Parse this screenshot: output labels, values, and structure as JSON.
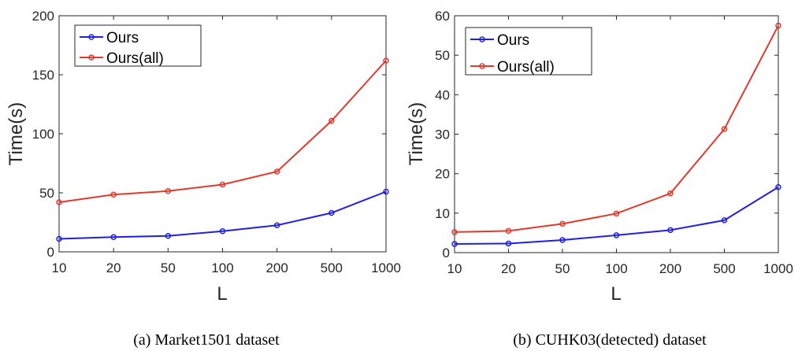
{
  "chart_data": [
    {
      "type": "line",
      "categories": [
        "10",
        "20",
        "50",
        "100",
        "200",
        "500",
        "1000"
      ],
      "xlabel": "L",
      "ylabel": "Time(s)",
      "ylim": [
        0,
        200
      ],
      "yticks": [
        0,
        50,
        100,
        150,
        200
      ],
      "grid": false,
      "legend_position": "top-left",
      "series": [
        {
          "name": "Ours",
          "color": "#2020e0",
          "values": [
            11,
            12.5,
            13.5,
            17.5,
            22.5,
            33,
            51
          ]
        },
        {
          "name": "Ours(all)",
          "color": "#e03a2e",
          "values": [
            42,
            48.5,
            51.5,
            57,
            68,
            111,
            162
          ]
        }
      ],
      "caption": "(a) Market1501 dataset"
    },
    {
      "type": "line",
      "categories": [
        "10",
        "20",
        "50",
        "100",
        "200",
        "500",
        "1000"
      ],
      "xlabel": "L",
      "ylabel": "Time(s)",
      "ylim": [
        0,
        60
      ],
      "yticks": [
        0,
        10,
        20,
        30,
        40,
        50,
        60
      ],
      "grid": false,
      "legend_position": "top-left",
      "series": [
        {
          "name": "Ours",
          "color": "#2020e0",
          "values": [
            2.2,
            2.3,
            3.2,
            4.4,
            5.7,
            8.2,
            16.6
          ]
        },
        {
          "name": "Ours(all)",
          "color": "#e03a2e",
          "values": [
            5.2,
            5.5,
            7.3,
            9.9,
            15.0,
            31.3,
            57.5
          ]
        }
      ],
      "caption": "(b) CUHK03(detected) dataset"
    }
  ]
}
